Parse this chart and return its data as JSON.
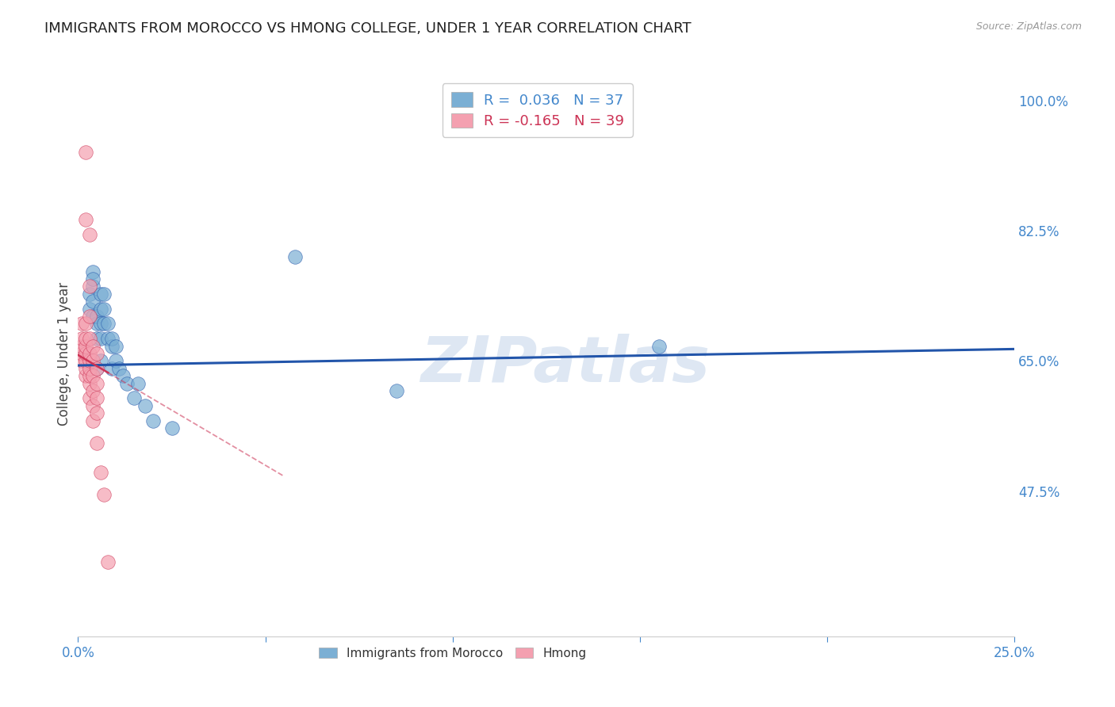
{
  "title": "IMMIGRANTS FROM MOROCCO VS HMONG COLLEGE, UNDER 1 YEAR CORRELATION CHART",
  "source": "Source: ZipAtlas.com",
  "ylabel": "College, Under 1 year",
  "legend_labels": [
    "Immigrants from Morocco",
    "Hmong"
  ],
  "morocco_R": 0.036,
  "morocco_N": 37,
  "hmong_R": -0.165,
  "hmong_N": 39,
  "xlim": [
    0.0,
    0.25
  ],
  "ylim": [
    0.28,
    1.04
  ],
  "blue_color": "#7BAFD4",
  "pink_color": "#F4A0B0",
  "trend_blue": "#2255AA",
  "trend_pink": "#CC3355",
  "watermark_text": "ZIPatlas",
  "watermark_color": "#C8D8EC",
  "axis_color": "#4488CC",
  "grid_color": "#DDDDDD",
  "right_yticks": [
    1.0,
    0.825,
    0.65,
    0.475
  ],
  "right_ytick_labels": [
    "100.0%",
    "82.5%",
    "65.0%",
    "47.5%"
  ],
  "morocco_scatter_x": [
    0.003,
    0.003,
    0.004,
    0.004,
    0.004,
    0.004,
    0.004,
    0.005,
    0.005,
    0.005,
    0.005,
    0.006,
    0.006,
    0.006,
    0.006,
    0.006,
    0.007,
    0.007,
    0.007,
    0.008,
    0.008,
    0.009,
    0.009,
    0.009,
    0.01,
    0.01,
    0.011,
    0.012,
    0.013,
    0.015,
    0.016,
    0.018,
    0.02,
    0.025,
    0.058,
    0.085,
    0.155
  ],
  "morocco_scatter_y": [
    0.72,
    0.74,
    0.71,
    0.73,
    0.75,
    0.77,
    0.76,
    0.68,
    0.7,
    0.71,
    0.64,
    0.68,
    0.7,
    0.72,
    0.65,
    0.74,
    0.7,
    0.72,
    0.74,
    0.68,
    0.7,
    0.67,
    0.68,
    0.64,
    0.65,
    0.67,
    0.64,
    0.63,
    0.62,
    0.6,
    0.62,
    0.59,
    0.57,
    0.56,
    0.79,
    0.61,
    0.67
  ],
  "hmong_scatter_x": [
    0.001,
    0.001,
    0.001,
    0.001,
    0.001,
    0.002,
    0.002,
    0.002,
    0.002,
    0.002,
    0.002,
    0.002,
    0.002,
    0.002,
    0.003,
    0.003,
    0.003,
    0.003,
    0.003,
    0.003,
    0.003,
    0.003,
    0.003,
    0.003,
    0.004,
    0.004,
    0.004,
    0.004,
    0.004,
    0.004,
    0.005,
    0.005,
    0.005,
    0.005,
    0.005,
    0.005,
    0.006,
    0.007,
    0.008
  ],
  "hmong_scatter_y": [
    0.65,
    0.66,
    0.67,
    0.68,
    0.7,
    0.63,
    0.64,
    0.65,
    0.66,
    0.67,
    0.68,
    0.7,
    0.84,
    0.93,
    0.6,
    0.62,
    0.63,
    0.64,
    0.65,
    0.66,
    0.68,
    0.71,
    0.75,
    0.82,
    0.57,
    0.59,
    0.61,
    0.63,
    0.65,
    0.67,
    0.54,
    0.58,
    0.6,
    0.62,
    0.64,
    0.66,
    0.5,
    0.47,
    0.38
  ],
  "blue_trend_y0": 0.644,
  "blue_trend_y1": 0.666,
  "pink_trend_x0": 0.0,
  "pink_trend_y0": 0.658,
  "pink_trend_x1": 0.055,
  "pink_trend_y1": 0.495,
  "figsize": [
    14.06,
    8.92
  ],
  "dpi": 100
}
